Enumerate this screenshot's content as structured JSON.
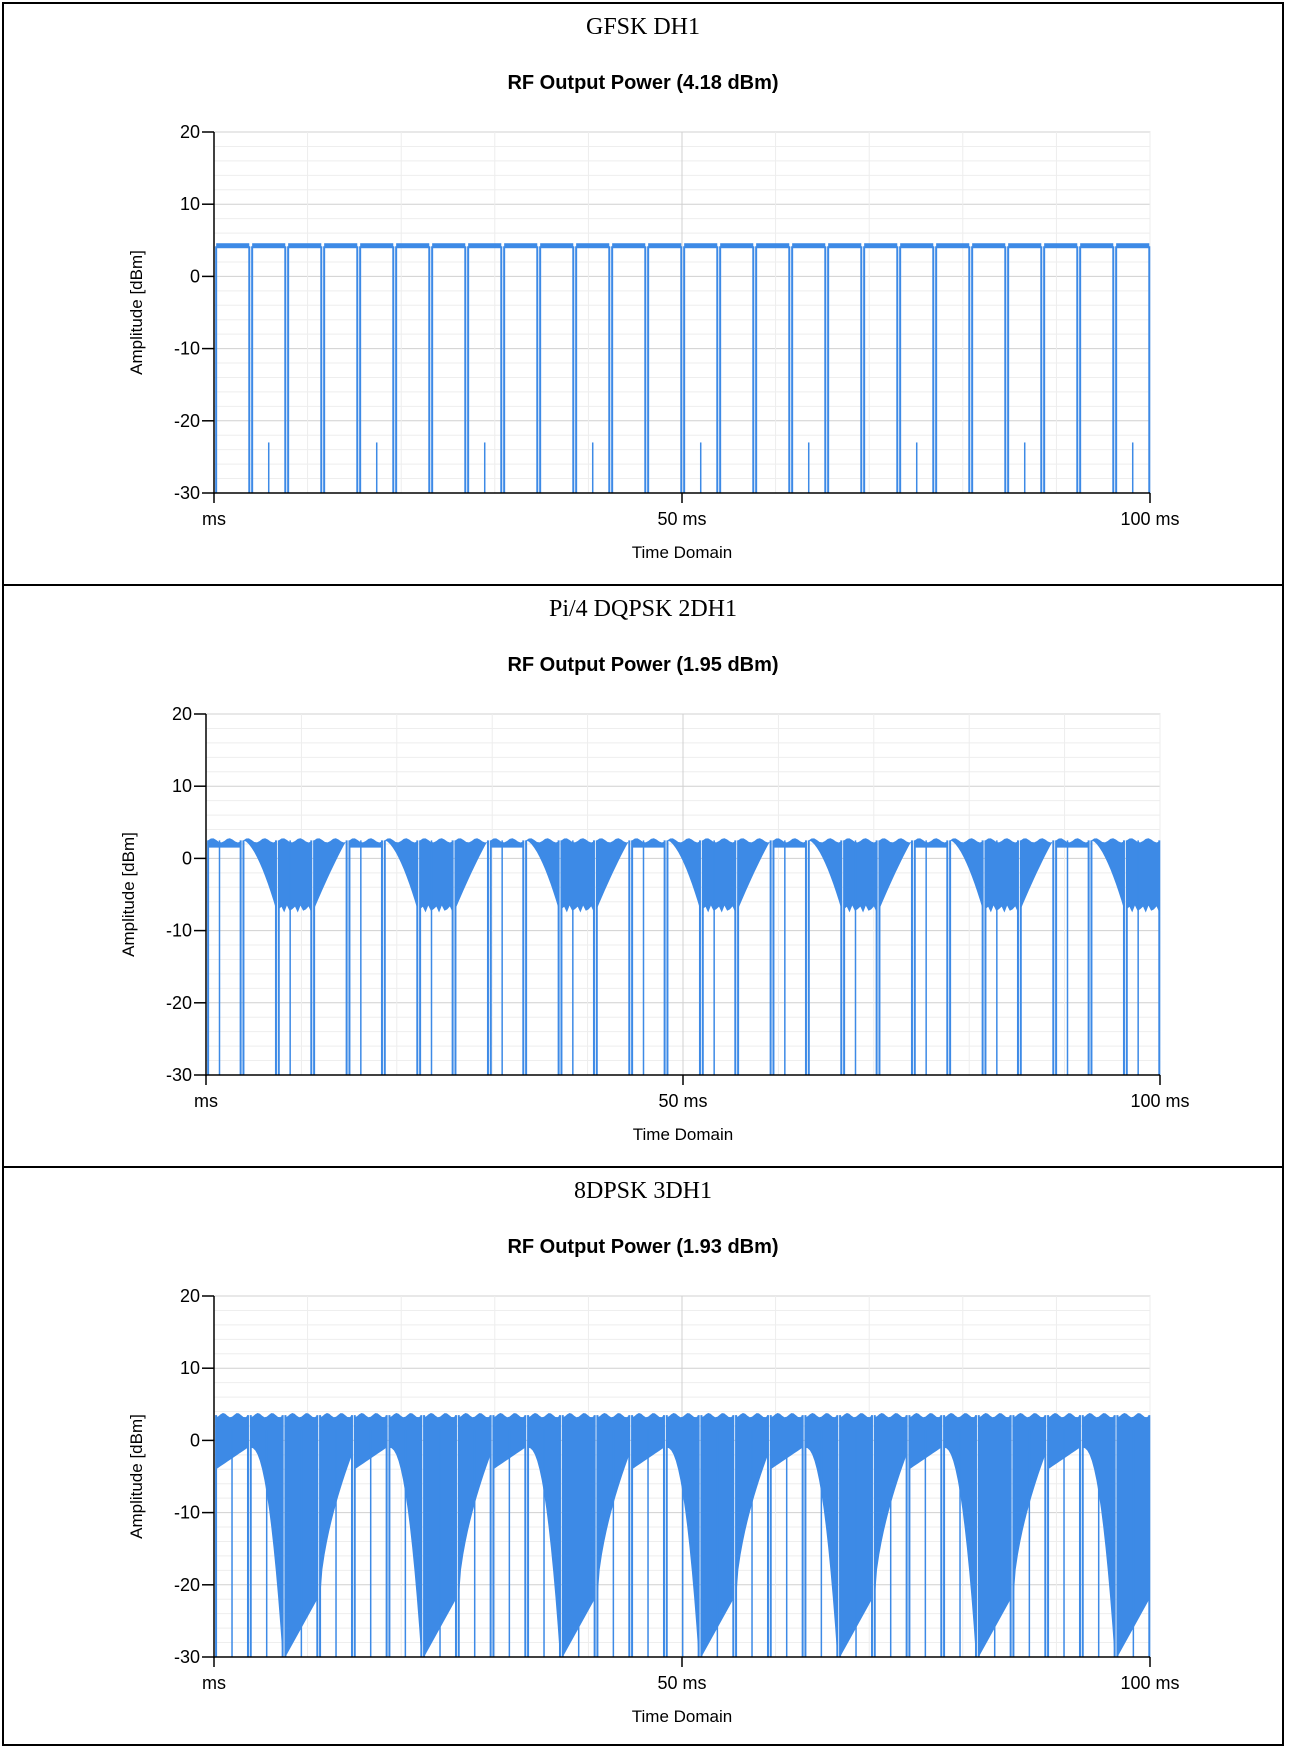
{
  "chart_data": [
    {
      "type": "line",
      "panel_title": "GFSK DH1",
      "title": "RF Output Power (4.18 dBm)",
      "xlabel": "Time Domain",
      "ylabel": "Amplitude [dBm]",
      "xlim": [
        0,
        100
      ],
      "ylim": [
        -30,
        20
      ],
      "y_ticks": [
        20,
        10,
        0,
        -10,
        -20,
        -30
      ],
      "x_tick_labels": [
        {
          "x": 0,
          "label": "ms"
        },
        {
          "x": 50,
          "label": "50 ms"
        },
        {
          "x": 100,
          "label": "100 ms"
        }
      ],
      "grid": true,
      "color": "#3d8ae6",
      "pattern": "gfsk",
      "bursts": 26,
      "burst_high_dbm": 4.18,
      "floor_dbm": -30
    },
    {
      "type": "line",
      "panel_title": "Pi/4 DQPSK 2DH1",
      "title": "RF Output Power (1.95 dBm)",
      "xlabel": "Time Domain",
      "ylabel": "Amplitude [dBm]",
      "xlim": [
        0,
        100
      ],
      "ylim": [
        -30,
        20
      ],
      "y_ticks": [
        20,
        10,
        0,
        -10,
        -20,
        -30
      ],
      "x_tick_labels": [
        {
          "x": 0,
          "label": "ms"
        },
        {
          "x": 50,
          "label": "50 ms"
        },
        {
          "x": 100,
          "label": "100 ms"
        }
      ],
      "grid": true,
      "color": "#3d8ae6",
      "pattern": "dqpsk",
      "bursts": 27,
      "burst_high_dbm": 2.5,
      "burst_low_dbm": -7,
      "floor_dbm": -30
    },
    {
      "type": "line",
      "panel_title": "8DPSK 3DH1",
      "title": "RF Output Power (1.93 dBm)",
      "xlabel": "Time Domain",
      "ylabel": "Amplitude [dBm]",
      "xlim": [
        0,
        100
      ],
      "ylim": [
        -30,
        20
      ],
      "y_ticks": [
        20,
        10,
        0,
        -10,
        -20,
        -30
      ],
      "x_tick_labels": [
        {
          "x": 0,
          "label": "ms"
        },
        {
          "x": 50,
          "label": "50 ms"
        },
        {
          "x": 100,
          "label": "100 ms"
        }
      ],
      "grid": true,
      "color": "#3d8ae6",
      "pattern": "8dpsk",
      "bursts": 27,
      "burst_high_dbm": 3.5,
      "burst_low_dbm": -30,
      "floor_dbm": -30
    }
  ]
}
